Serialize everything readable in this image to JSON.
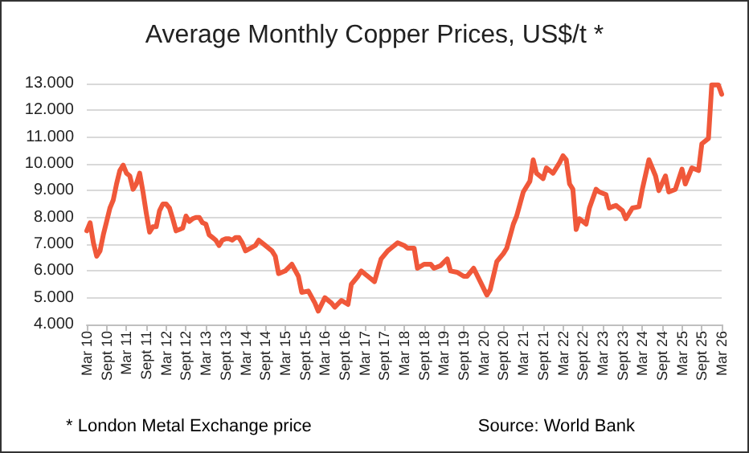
{
  "chart_data": {
    "type": "line",
    "title": "Average Monthly Copper Prices, US$/t *",
    "annotations": [
      "* London Metal Exchange price",
      "Source: World Bank"
    ],
    "xlim": [
      "2010-03",
      "2026-03"
    ],
    "xticks": [
      {
        "value": "2010-03",
        "label": "Mar 10"
      },
      {
        "value": "2010-09",
        "label": "Sept 10"
      },
      {
        "value": "2011-03",
        "label": "Mar 11"
      },
      {
        "value": "2011-09",
        "label": "Sept 11"
      },
      {
        "value": "2012-03",
        "label": "Mar 12"
      },
      {
        "value": "2012-09",
        "label": "Sept 12"
      },
      {
        "value": "2013-03",
        "label": "Mar 13"
      },
      {
        "value": "2013-09",
        "label": "Sept 13"
      },
      {
        "value": "2014-03",
        "label": "Mar 14"
      },
      {
        "value": "2014-09",
        "label": "Sept 14"
      },
      {
        "value": "2015-03",
        "label": "Mar 15"
      },
      {
        "value": "2015-09",
        "label": "Sept 15"
      },
      {
        "value": "2016-03",
        "label": "Mar 16"
      },
      {
        "value": "2016-09",
        "label": "Sept 16"
      },
      {
        "value": "2017-03",
        "label": "Mar 17"
      },
      {
        "value": "2017-09",
        "label": "Sept 17"
      },
      {
        "value": "2018-03",
        "label": "Mar 18"
      },
      {
        "value": "2018-09",
        "label": "Sept 18"
      },
      {
        "value": "2019-03",
        "label": "Mar 19"
      },
      {
        "value": "2019-09",
        "label": "Sept 19"
      },
      {
        "value": "2020-03",
        "label": "Mar 20"
      },
      {
        "value": "2020-09",
        "label": "Sept 20"
      },
      {
        "value": "2021-03",
        "label": "Mar 21"
      },
      {
        "value": "2021-09",
        "label": "Sept 21"
      },
      {
        "value": "2022-03",
        "label": "Mar 22"
      },
      {
        "value": "2022-09",
        "label": "Sept 22"
      },
      {
        "value": "2023-03",
        "label": "Mar 23"
      },
      {
        "value": "2023-09",
        "label": "Sept 23"
      },
      {
        "value": "2024-03",
        "label": "Mar 24"
      },
      {
        "value": "2024-09",
        "label": "Sept 24"
      },
      {
        "value": "2025-03",
        "label": "Mar 25"
      },
      {
        "value": "2025-09",
        "label": "Sept 25"
      },
      {
        "value": "2026-03",
        "label": "Mar 26"
      }
    ],
    "ylim": [
      4000,
      13000
    ],
    "yticks": [
      {
        "value": 4000,
        "label": "4.000"
      },
      {
        "value": 5000,
        "label": "5.000"
      },
      {
        "value": 6000,
        "label": "6.000"
      },
      {
        "value": 7000,
        "label": "7.000"
      },
      {
        "value": 8000,
        "label": "8.000"
      },
      {
        "value": 9000,
        "label": "9.000"
      },
      {
        "value": 10000,
        "label": "10.000"
      },
      {
        "value": 11000,
        "label": "11.000"
      },
      {
        "value": 12000,
        "label": "12.000"
      },
      {
        "value": 13000,
        "label": "13.000"
      }
    ],
    "grid": "y",
    "series": [
      {
        "color": "#f0583a",
        "x": [
          "2010-03",
          "2010-04",
          "2010-05",
          "2010-06",
          "2010-07",
          "2010-08",
          "2010-09",
          "2010-10",
          "2010-11",
          "2010-12",
          "2011-01",
          "2011-02",
          "2011-03",
          "2011-04",
          "2011-05",
          "2011-06",
          "2011-07",
          "2011-08",
          "2011-09",
          "2011-10",
          "2011-11",
          "2011-12",
          "2012-01",
          "2012-02",
          "2012-03",
          "2012-04",
          "2012-05",
          "2012-06",
          "2012-07",
          "2012-08",
          "2012-09",
          "2012-10",
          "2012-11",
          "2012-12",
          "2013-01",
          "2013-02",
          "2013-03",
          "2013-04",
          "2013-05",
          "2013-06",
          "2013-07",
          "2013-08",
          "2013-09",
          "2013-10",
          "2013-11",
          "2013-12",
          "2014-01",
          "2014-02",
          "2014-03",
          "2014-06",
          "2014-07",
          "2014-09",
          "2014-11",
          "2014-12",
          "2015-01",
          "2015-03",
          "2015-05",
          "2015-07",
          "2015-08",
          "2015-10",
          "2015-12",
          "2016-01",
          "2016-03",
          "2016-05",
          "2016-06",
          "2016-08",
          "2016-10",
          "2016-11",
          "2017-01",
          "2017-02",
          "2017-04",
          "2017-06",
          "2017-08",
          "2017-10",
          "2017-11",
          "2018-01",
          "2018-03",
          "2018-04",
          "2018-06",
          "2018-07",
          "2018-09",
          "2018-11",
          "2018-12",
          "2019-02",
          "2019-04",
          "2019-05",
          "2019-07",
          "2019-09",
          "2019-10",
          "2019-12",
          "2020-02",
          "2020-04",
          "2020-05",
          "2020-07",
          "2020-09",
          "2020-10",
          "2020-12",
          "2021-01",
          "2021-03",
          "2021-05",
          "2021-06",
          "2021-07",
          "2021-09",
          "2021-10",
          "2021-12",
          "2022-02",
          "2022-03",
          "2022-04",
          "2022-05",
          "2022-06",
          "2022-07",
          "2022-08",
          "2022-10",
          "2022-11",
          "2023-01",
          "2023-02",
          "2023-04",
          "2023-05",
          "2023-07",
          "2023-09",
          "2023-10",
          "2023-12",
          "2024-02",
          "2024-03",
          "2024-05",
          "2024-07",
          "2024-08",
          "2024-10",
          "2024-11",
          "2025-01",
          "2025-03",
          "2025-04",
          "2025-06",
          "2025-08",
          "2025-09",
          "2025-11",
          "2025-12",
          "2026-02",
          "2026-03"
        ],
        "values": [
          7500,
          7800,
          7050,
          6550,
          6750,
          7350,
          7850,
          8350,
          8650,
          9250,
          9750,
          9950,
          9650,
          9550,
          9050,
          9250,
          9650,
          8950,
          8150,
          7450,
          7650,
          7650,
          8250,
          8500,
          8500,
          8350,
          7950,
          7500,
          7550,
          7600,
          8050,
          7850,
          7950,
          8000,
          8000,
          7800,
          7750,
          7350,
          7250,
          7150,
          6950,
          7150,
          7200,
          7200,
          7150,
          7250,
          7250,
          7050,
          6750,
          6950,
          7150,
          6950,
          6750,
          6550,
          5900,
          6000,
          6250,
          5800,
          5200,
          5250,
          4800,
          4500,
          5000,
          4800,
          4650,
          4900,
          4750,
          5500,
          5800,
          6000,
          5800,
          5600,
          6450,
          6750,
          6850,
          7050,
          6950,
          6850,
          6850,
          6100,
          6250,
          6250,
          6100,
          6200,
          6450,
          6000,
          5950,
          5800,
          5800,
          6100,
          5600,
          5100,
          5300,
          6350,
          6650,
          6850,
          7750,
          8050,
          8950,
          9350,
          10150,
          9650,
          9450,
          9850,
          9650,
          10050,
          10300,
          10150,
          9250,
          9050,
          7550,
          7950,
          7750,
          8350,
          9050,
          8950,
          8850,
          8350,
          8450,
          8250,
          7950,
          8350,
          8400,
          9050,
          10150,
          9550,
          9000,
          9550,
          8950,
          9050,
          9800,
          9250,
          9850,
          9750,
          10750,
          10950,
          12950,
          12950,
          12600
        ]
      }
    ]
  }
}
